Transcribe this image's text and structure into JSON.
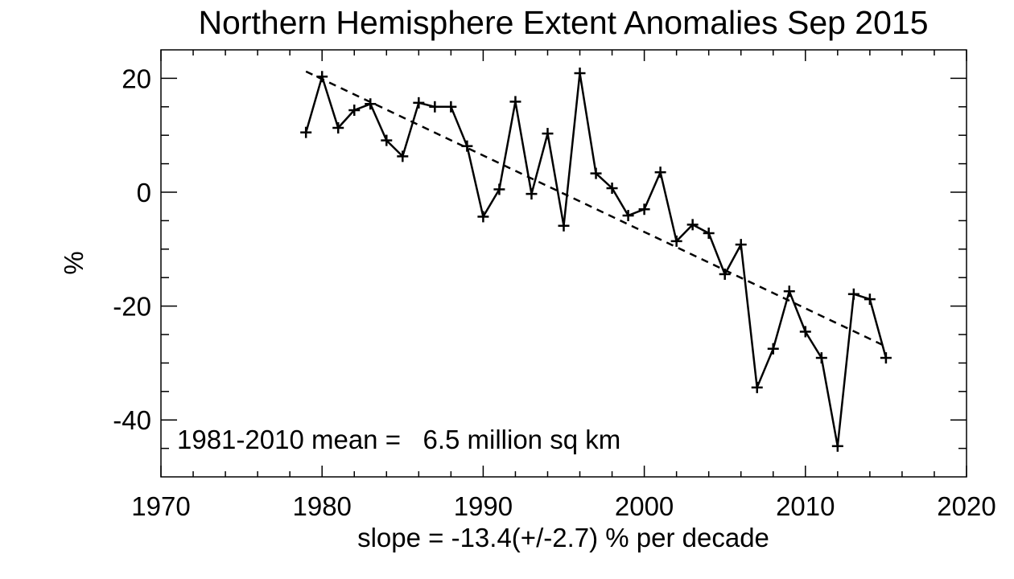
{
  "chart_data": {
    "type": "line",
    "title": "Northern Hemisphere Extent Anomalies Sep 2015",
    "xlabel": "slope = -13.4(+/-2.7) % per decade",
    "ylabel": "%",
    "annotation": "1981-2010 mean =   6.5 million sq km",
    "xlim": [
      1970,
      2020
    ],
    "ylim": [
      -50,
      25
    ],
    "x_ticks": [
      1970,
      1980,
      1990,
      2000,
      2010,
      2020
    ],
    "x_tick_labels": [
      "1970",
      "1980",
      "1990",
      "2000",
      "2010",
      "2020"
    ],
    "y_ticks": [
      -40,
      -20,
      0,
      20
    ],
    "y_tick_labels": [
      "-40",
      "-20",
      "0",
      "20"
    ],
    "grid": false,
    "marker": "plus",
    "series": [
      {
        "style": "solid",
        "x": [
          1979,
          1980,
          1981,
          1982,
          1983,
          1984,
          1985,
          1986,
          1987,
          1988,
          1989,
          1990,
          1991,
          1992,
          1993,
          1994,
          1995,
          1996,
          1997,
          1998,
          1999,
          2000,
          2001,
          2002,
          2003,
          2004,
          2005,
          2006,
          2007,
          2008,
          2009,
          2010,
          2011,
          2012,
          2013,
          2014,
          2015
        ],
        "values": [
          10.5,
          20.3,
          11.3,
          14.4,
          15.5,
          9.1,
          6.3,
          15.7,
          15.0,
          15.0,
          8.1,
          -4.3,
          0.5,
          15.9,
          -0.3,
          10.3,
          -5.9,
          20.9,
          3.3,
          0.7,
          -4.1,
          -3.0,
          3.5,
          -8.6,
          -5.7,
          -7.2,
          -14.4,
          -9.2,
          -34.3,
          -27.5,
          -17.4,
          -24.5,
          -29.1,
          -44.6,
          -17.9,
          -18.8,
          -29.1
        ]
      },
      {
        "style": "dashed",
        "x": [
          1979,
          2015
        ],
        "values": [
          21.2,
          -27.1
        ]
      }
    ]
  }
}
